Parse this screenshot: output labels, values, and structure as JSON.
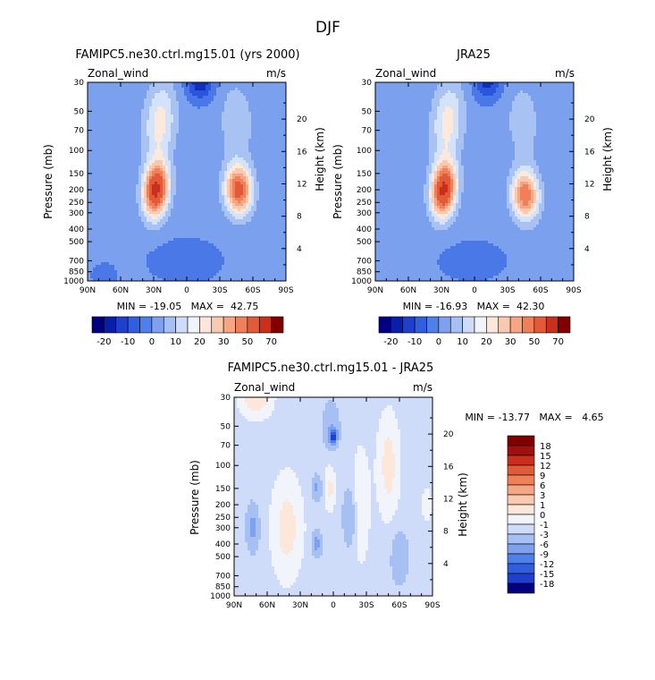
{
  "page_title": "DJF",
  "colors": {
    "neg": [
      "#000080",
      "#0a1ea8",
      "#1f3fcf",
      "#2f5fe0",
      "#4f7fe8",
      "#7ea1ef",
      "#a7c0f4",
      "#cfdcf9"
    ],
    "neu": [
      "#f2f4fc",
      "#fde6da"
    ],
    "pos": [
      "#f9c9b0",
      "#f6a683",
      "#f0805a",
      "#e15b39",
      "#c9301c",
      "#a01010",
      "#800000"
    ]
  },
  "chart_data": [
    {
      "type": "heatmap",
      "title": "FAMIPC5.ne30.ctrl.mg15.01 (yrs 2000)",
      "left_label": "Zonal_wind",
      "units": "m/s",
      "ylabel": "Pressure (mb)",
      "y2label": "Height (km)",
      "x_ticks": [
        "90N",
        "60N",
        "30N",
        "0",
        "30S",
        "60S",
        "90S"
      ],
      "x_values": [
        90,
        60,
        30,
        0,
        -30,
        -60,
        -90
      ],
      "xlim": [
        90,
        -90
      ],
      "y_ticks": [
        "30",
        "50",
        "70",
        "100",
        "150",
        "200",
        "250",
        "300",
        "400",
        "500",
        "700",
        "850",
        "1000"
      ],
      "y_values": [
        30,
        50,
        70,
        100,
        150,
        200,
        250,
        300,
        400,
        500,
        700,
        850,
        1000
      ],
      "ylim": [
        30,
        1000
      ],
      "y_scale": "log",
      "y2_ticks": [
        "4",
        "8",
        "12",
        "16",
        "20"
      ],
      "y2_values": [
        4,
        8,
        12,
        16,
        20
      ],
      "min_max_text": "MIN = -19.05   MAX =  42.75",
      "min": -19.05,
      "max": 42.75,
      "levels": [
        -20,
        -10,
        0,
        10,
        20,
        30,
        50,
        70
      ],
      "colorbar_labels": [
        "-20",
        "-10",
        "0",
        "10",
        "20",
        "30",
        "50",
        "70"
      ],
      "jets": [
        {
          "lat": 28,
          "p": 200,
          "peak": 42.75,
          "wlat": 11,
          "wp": 0.33,
          "rise": 3.0
        },
        {
          "lat": -47,
          "p": 200,
          "peak": 34,
          "wlat": 12,
          "wp": 0.3,
          "rise": -1.5
        }
      ],
      "easterlies": [
        {
          "lat": -12,
          "p": 30,
          "peak": -19.05,
          "wlat": 12,
          "wp": 0.28
        },
        {
          "lat": 2,
          "p": 700,
          "peak": -8,
          "wlat": 30,
          "wp": 0.35
        },
        {
          "lat": 75,
          "p": 900,
          "peak": -6,
          "wlat": 14,
          "wp": 0.25
        }
      ],
      "bg": -4
    },
    {
      "type": "heatmap",
      "title": "JRA25",
      "left_label": "Zonal_wind",
      "units": "m/s",
      "ylabel": "Pressure (mb)",
      "y2label": "Height (km)",
      "x_ticks": [
        "90N",
        "60N",
        "30N",
        "0",
        "30S",
        "60S",
        "90S"
      ],
      "x_values": [
        90,
        60,
        30,
        0,
        -30,
        -60,
        -90
      ],
      "xlim": [
        90,
        -90
      ],
      "y_ticks": [
        "30",
        "50",
        "70",
        "100",
        "150",
        "200",
        "250",
        "300",
        "400",
        "500",
        "700",
        "850",
        "1000"
      ],
      "y_values": [
        30,
        50,
        70,
        100,
        150,
        200,
        250,
        300,
        400,
        500,
        700,
        850,
        1000
      ],
      "ylim": [
        30,
        1000
      ],
      "y_scale": "log",
      "y2_ticks": [
        "4",
        "8",
        "12",
        "16",
        "20"
      ],
      "y2_values": [
        4,
        8,
        12,
        16,
        20
      ],
      "min_max_text": "MIN = -16.93   MAX =  42.30",
      "min": -16.93,
      "max": 42.3,
      "levels": [
        -20,
        -10,
        0,
        10,
        20,
        30,
        50,
        70
      ],
      "colorbar_labels": [
        "-20",
        "-10",
        "0",
        "10",
        "20",
        "30",
        "50",
        "70"
      ],
      "jets": [
        {
          "lat": 28,
          "p": 200,
          "peak": 42.3,
          "wlat": 11,
          "wp": 0.33,
          "rise": 3.0
        },
        {
          "lat": -46,
          "p": 220,
          "peak": 30,
          "wlat": 12,
          "wp": 0.3,
          "rise": -1.5
        }
      ],
      "easterlies": [
        {
          "lat": -12,
          "p": 30,
          "peak": -16.93,
          "wlat": 12,
          "wp": 0.28
        },
        {
          "lat": 2,
          "p": 700,
          "peak": -7,
          "wlat": 30,
          "wp": 0.35
        },
        {
          "lat": 75,
          "p": 900,
          "peak": -5,
          "wlat": 14,
          "wp": 0.25
        }
      ],
      "bg": -4
    },
    {
      "type": "heatmap",
      "title": "FAMIPC5.ne30.ctrl.mg15.01 - JRA25",
      "left_label": "Zonal_wind",
      "units": "m/s",
      "ylabel": "Pressure (mb)",
      "y2label": "Height (km)",
      "x_ticks": [
        "90N",
        "60N",
        "30N",
        "0",
        "30S",
        "60S",
        "90S"
      ],
      "x_values": [
        90,
        60,
        30,
        0,
        -30,
        -60,
        -90
      ],
      "xlim": [
        90,
        -90
      ],
      "y_ticks": [
        "30",
        "50",
        "70",
        "100",
        "150",
        "200",
        "250",
        "300",
        "400",
        "500",
        "700",
        "850",
        "1000"
      ],
      "y_values": [
        30,
        50,
        70,
        100,
        150,
        200,
        250,
        300,
        400,
        500,
        700,
        850,
        1000
      ],
      "ylim": [
        30,
        1000
      ],
      "y_scale": "log",
      "y2_ticks": [
        "4",
        "8",
        "12",
        "16",
        "20"
      ],
      "y2_values": [
        4,
        8,
        12,
        16,
        20
      ],
      "min_max_text": "MIN = -13.77   MAX =   4.65",
      "min": -13.77,
      "max": 4.65,
      "levels": [
        -18,
        -15,
        -12,
        -9,
        -6,
        -3,
        -1,
        0,
        1,
        3,
        6,
        9,
        12,
        15,
        18
      ],
      "colorbar_labels": [
        "18",
        "15",
        "12",
        "9",
        "6",
        "3",
        "1",
        "0",
        "-1",
        "-3",
        "-6",
        "-9",
        "-12",
        "-15",
        "-18"
      ],
      "features": [
        {
          "lat": 42,
          "p": 300,
          "amp": 2.0,
          "wlat": 14,
          "wp": 0.9
        },
        {
          "lat": 70,
          "p": 30,
          "amp": 2.5,
          "wlat": 14,
          "wp": 0.35
        },
        {
          "lat": -25,
          "p": 200,
          "amp": 1.5,
          "wlat": 8,
          "wp": 1.0
        },
        {
          "lat": -50,
          "p": 100,
          "amp": 2.0,
          "wlat": 10,
          "wp": 0.9
        },
        {
          "lat": 3,
          "p": 150,
          "amp": 1.8,
          "wlat": 5,
          "wp": 0.4
        },
        {
          "lat": 0,
          "p": 60,
          "amp": -13.77,
          "wlat": 3,
          "wp": 0.12
        },
        {
          "lat": 2,
          "p": 50,
          "amp": -2.0,
          "wlat": 7,
          "wp": 0.4
        },
        {
          "lat": 73,
          "p": 300,
          "amp": -3.5,
          "wlat": 5,
          "wp": 0.35
        },
        {
          "lat": 15,
          "p": 150,
          "amp": -3.0,
          "wlat": 4,
          "wp": 0.2
        },
        {
          "lat": 15,
          "p": 400,
          "amp": -3.5,
          "wlat": 4,
          "wp": 0.2
        },
        {
          "lat": -15,
          "p": 250,
          "amp": -2.0,
          "wlat": 6,
          "wp": 0.5
        },
        {
          "lat": -60,
          "p": 500,
          "amp": -1.5,
          "wlat": 8,
          "wp": 0.5
        },
        {
          "lat": -85,
          "p": 200,
          "amp": 1.5,
          "wlat": 4,
          "wp": 0.3
        }
      ],
      "bg": -0.5
    }
  ]
}
